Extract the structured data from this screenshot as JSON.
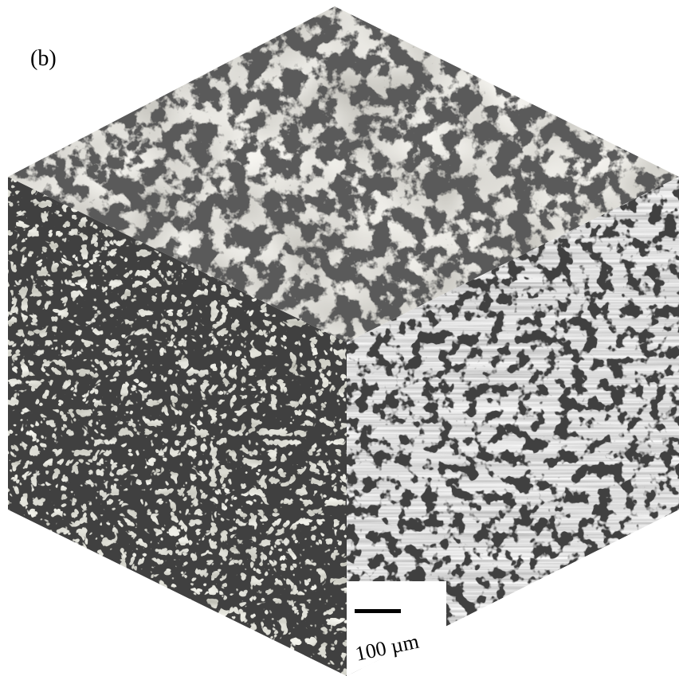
{
  "label": "(b)",
  "scale_bar": {
    "label": "100 µm"
  }
}
